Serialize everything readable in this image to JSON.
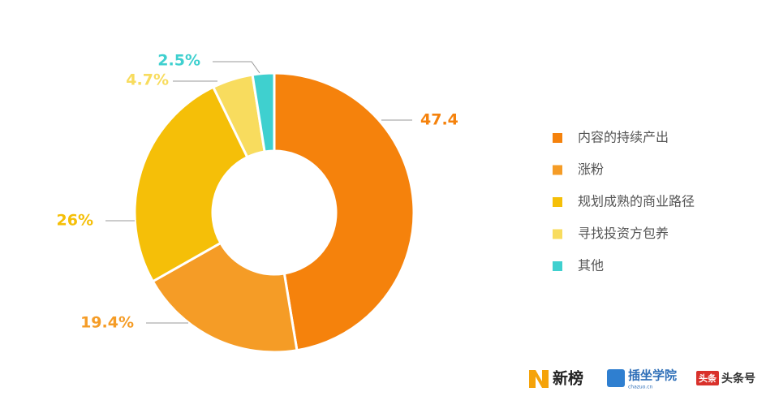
{
  "chart_data": {
    "type": "donut",
    "categories": [
      "内容的持续产出",
      "涨粉",
      "规划成熟的商业路径",
      "寻找投资方包养",
      "其他"
    ],
    "values": [
      47.4,
      19.4,
      26,
      4.7,
      2.5
    ],
    "value_labels": [
      "47.4",
      "19.4%",
      "26%",
      "4.7%",
      "2.5%"
    ],
    "colors": [
      "#f5820c",
      "#f59c26",
      "#f5bf08",
      "#f8dc5e",
      "#3fd0cf"
    ],
    "legend": "right"
  },
  "logos": [
    {
      "text": "新榜"
    },
    {
      "text": "插坐学院",
      "sub": "chazuo.cn"
    },
    {
      "badge": "头条",
      "text": "头条号"
    }
  ]
}
